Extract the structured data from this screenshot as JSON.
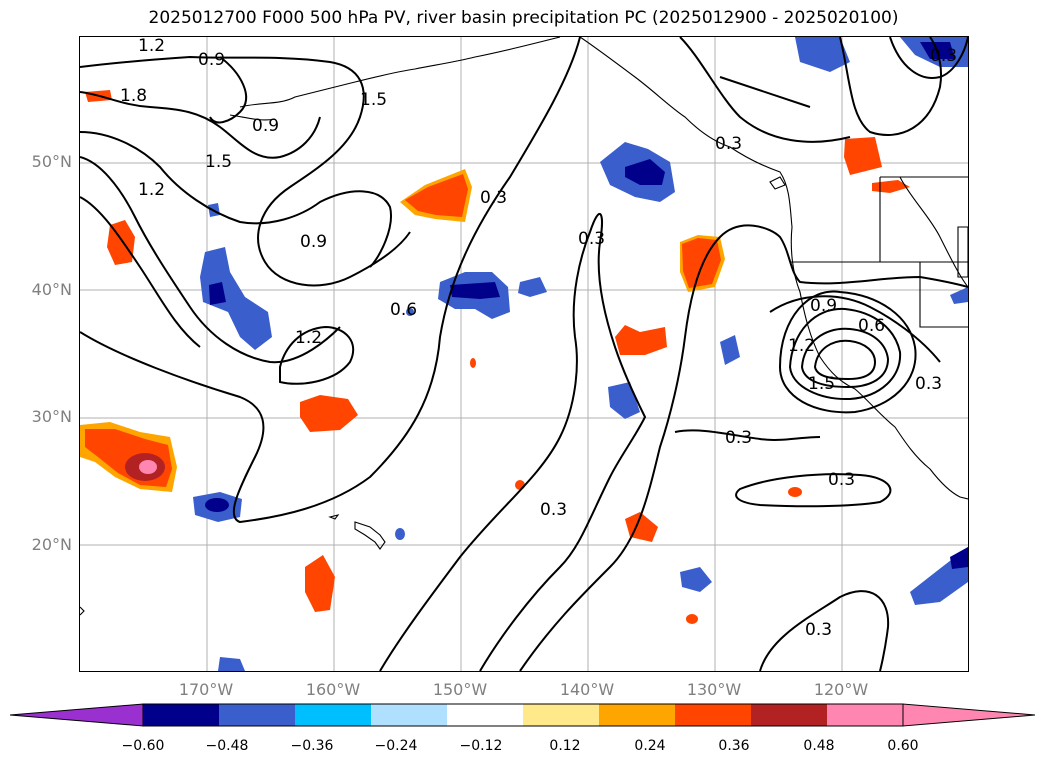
{
  "title": "2025012700 F000 500 hPa PV, river basin precipitation PC (2025012900 - 2025020100)",
  "lat_labels": [
    "50°N",
    "40°N",
    "30°N",
    "20°N"
  ],
  "lon_labels": [
    "170°W",
    "160°W",
    "150°W",
    "140°W",
    "130°W",
    "120°W"
  ],
  "contour_labels": [
    "1.2",
    "0.9",
    "1.8",
    "0.9",
    "1.5",
    "1.5",
    "1.2",
    "0.3",
    "0.9",
    "0.3",
    "0.6",
    "1.2",
    "0.3",
    "0.9",
    "0.6",
    "1.2",
    "1.5",
    "0.3",
    "0.3",
    "0.3",
    "0.3",
    "0.3",
    "0.3",
    "0.3"
  ],
  "colorbar": {
    "ticks": [
      "−0.60",
      "−0.48",
      "−0.36",
      "−0.24",
      "−0.12",
      "0.12",
      "0.24",
      "0.36",
      "0.48",
      "0.60"
    ],
    "colors": [
      "#9b30d0",
      "#00008b",
      "#3a5fcd",
      "#00bfff",
      "#b0e0ff",
      "#ffffff",
      "#ffe98a",
      "#ffa500",
      "#ff4500",
      "#b22222",
      "#ff86b0",
      "#ff86b0"
    ],
    "extend": "both"
  }
}
